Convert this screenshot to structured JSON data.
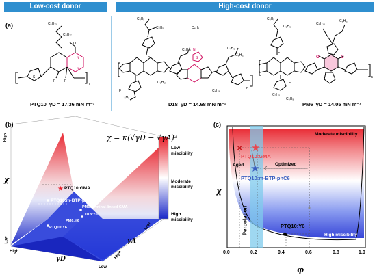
{
  "header": {
    "low_cost": "Low-cost donor",
    "high_cost": "High-cost donor"
  },
  "panel_a": {
    "label": "(a)",
    "molecules": [
      {
        "name": "PTQ10",
        "gamma": "γD = 17.36 mN m⁻¹",
        "chains": [
          "C6H13",
          "C8H17"
        ]
      },
      {
        "name": "D18",
        "gamma": "γD = 14.68 mN m⁻¹",
        "chains": [
          "C4H9",
          "C2H5",
          "C6H13",
          "C4H9",
          "C6H13",
          "C2H5"
        ]
      },
      {
        "name": "PM6",
        "gamma": "γD = 14.05 mN m⁻¹",
        "chains": [
          "C4H9",
          "C2H5",
          "C6H13",
          "C8H17",
          "C2H5",
          "C4H9"
        ]
      }
    ]
  },
  "panel_b": {
    "label": "(b)",
    "equation": "χ = κ(√γD − √γA)²",
    "chi_axis": "χ",
    "gd_axis": "γD",
    "ga_axis": "γA",
    "high": "High",
    "low": "Low",
    "colorbar": {
      "top": "Low miscibility",
      "mid": "Moderate miscibility",
      "bottom": "High miscibility"
    },
    "points": [
      "PTQ10:GMA",
      "PTQ10:m-BTP-phC6",
      "PM6:terminal-linked GMA",
      "D18:Y6",
      "PM6:Y6",
      "PTQ10:Y6"
    ]
  },
  "panel_c": {
    "label": "(c)",
    "y_axis": "χ",
    "x_axis": "φ",
    "x_ticks": [
      "0.0",
      "0.2",
      "0.4",
      "0.6",
      "0.8",
      "1.0"
    ],
    "moderate": "Moderate miscibility",
    "high_misc": "High miscibility",
    "gma": "PTQ10:GMA",
    "btp": "PTQ10:m-BTP-phC6",
    "y6": "PTQ10:Y6",
    "aged": "Aged",
    "optimized": "Optimized",
    "percolation": "Percolation"
  },
  "colors": {
    "header_bg": "#2f8fcf",
    "red": "#e8202a",
    "blue": "#2030c8",
    "star_red": "#e8474f",
    "star_blue": "#3a5fc0",
    "percolation": "#7fcbec"
  }
}
